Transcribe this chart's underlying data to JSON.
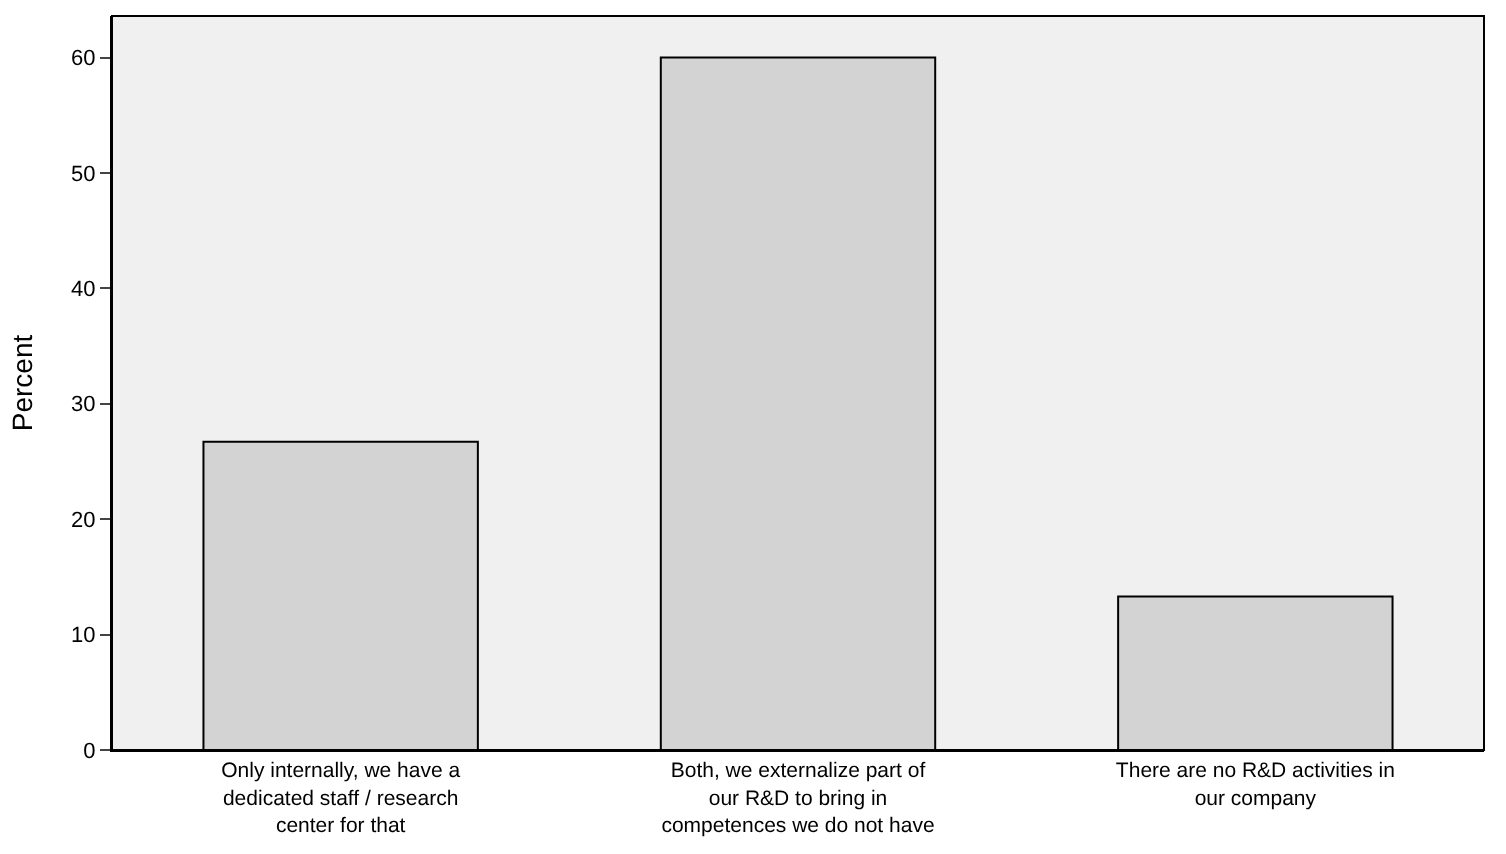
{
  "chart_data": {
    "type": "bar",
    "ylabel": "Percent",
    "categories": [
      "Only internally, we have a dedicated staff / research center for that",
      "Both, we externalize part of our R&D to bring in competences we do not have",
      "There are no R&D activities in our company"
    ],
    "values": [
      26.7,
      60.0,
      13.3
    ],
    "color": "#d3d3d3",
    "ylim": [
      0,
      63.6
    ],
    "yticks": [
      0,
      10,
      20,
      30,
      40,
      50,
      60
    ],
    "grid": false,
    "legend": false
  }
}
